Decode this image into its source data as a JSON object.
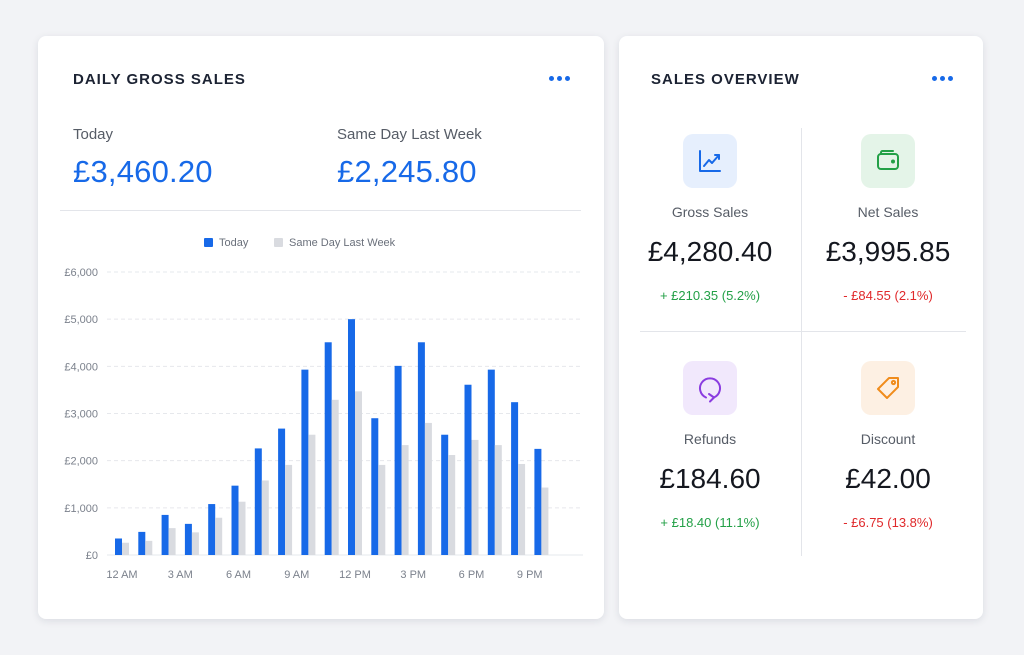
{
  "daily": {
    "title": "DAILY GROSS SALES",
    "today_label": "Today",
    "today_value": "£3,460.20",
    "last_label": "Same Day Last Week",
    "last_value": "£2,245.80"
  },
  "chart_data": {
    "type": "bar",
    "series": [
      {
        "name": "Today",
        "color": "#1769e8",
        "values": [
          350,
          490,
          850,
          660,
          1080,
          1470,
          2260,
          2680,
          3930,
          4510,
          5000,
          2900,
          4010,
          4510,
          2550,
          3610,
          3930,
          3240,
          2250
        ]
      },
      {
        "name": "Same Day Last Week",
        "color": "#d9dbe0",
        "values": [
          260,
          300,
          570,
          480,
          790,
          1130,
          1580,
          1910,
          2550,
          3290,
          3470,
          1910,
          2330,
          2800,
          2120,
          2440,
          2330,
          1930,
          1430
        ]
      }
    ],
    "x": [
      0,
      1,
      2,
      3,
      4,
      5,
      6,
      7,
      8,
      9,
      10,
      11,
      12,
      13,
      14,
      15,
      16,
      17,
      18
    ],
    "x_tick_labels": [
      "12 AM",
      "3 AM",
      "6 AM",
      "9 AM",
      "12 PM",
      "3 PM",
      "6 PM",
      "9 PM"
    ],
    "x_tick_positions": [
      0,
      2.5,
      5,
      7.5,
      10,
      12.5,
      15,
      17.5
    ],
    "y_ticks": [
      0,
      1000,
      2000,
      3000,
      4000,
      5000,
      6000
    ],
    "y_tick_labels": [
      "£0",
      "£1,000",
      "£2,000",
      "£3,000",
      "£4,000",
      "£5,000",
      "£6,000"
    ],
    "ylim": [
      0,
      6000
    ],
    "grid": true,
    "legend_position": "top-center",
    "title": "",
    "xlabel": "",
    "ylabel": ""
  },
  "overview": {
    "title": "SALES OVERVIEW",
    "metrics": [
      {
        "label": "Gross Sales",
        "value": "£4,280.40",
        "change": "+ £210.35 (5.2%)",
        "icon": "trend-up-icon",
        "icon_color": "#1769e8",
        "icon_bg": "#e6effd"
      },
      {
        "label": "Net Sales",
        "value": "£3,995.85",
        "change": "- £84.55 (2.1%)",
        "icon": "wallet-icon",
        "icon_color": "#23a047",
        "icon_bg": "#e4f4e8"
      },
      {
        "label": "Refunds",
        "value": "£184.60",
        "change": "+ £18.40 (11.1%)",
        "icon": "refund-icon",
        "icon_color": "#8a3ce0",
        "icon_bg": "#f1e8fc"
      },
      {
        "label": "Discount",
        "value": "£42.00",
        "change": "- £6.75 (13.8%)",
        "icon": "tag-icon",
        "icon_color": "#f08c1c",
        "icon_bg": "#fdf0e3"
      }
    ]
  }
}
